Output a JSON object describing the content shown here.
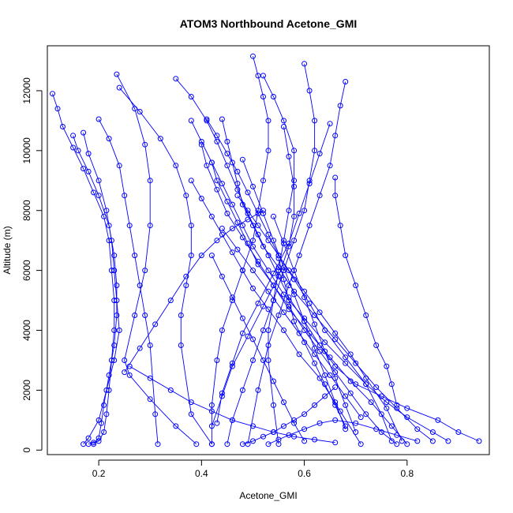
{
  "chart_data": {
    "type": "scatter",
    "title": "ATOM3 Northbound Acetone_GMI",
    "xlabel": "Acetone_GMI",
    "ylabel": "Altitude (m)",
    "xlim": [
      0.1,
      0.96
    ],
    "ylim": [
      -150,
      13500
    ],
    "x_ticks": [
      0.2,
      0.4,
      0.6,
      0.8
    ],
    "y_ticks": [
      0,
      2000,
      4000,
      6000,
      8000,
      10000,
      12000
    ],
    "x_tick_labels": [
      "0.2",
      "0.4",
      "0.6",
      "0.8"
    ],
    "y_tick_labels": [
      "0",
      "2000",
      "4000",
      "6000",
      "8000",
      "10000",
      "12000"
    ],
    "grid": false,
    "legend": "none",
    "color": "#0000ff",
    "marker": "open-circle",
    "line_style": "solid-line-with-markers",
    "series": [
      {
        "x": [
          0.11,
          0.12,
          0.13,
          0.15,
          0.17,
          0.19,
          0.21,
          0.22,
          0.225,
          0.23,
          0.23,
          0.225,
          0.22,
          0.215,
          0.21,
          0.2,
          0.19,
          0.18
        ],
        "y": [
          11900,
          11400,
          10800,
          10100,
          9400,
          8600,
          7800,
          7000,
          6000,
          5000,
          4000,
          3000,
          2000,
          1200,
          600,
          300,
          250,
          200
        ]
      },
      {
        "x": [
          0.15,
          0.16,
          0.18,
          0.2,
          0.22,
          0.23,
          0.235,
          0.235,
          0.23,
          0.22,
          0.21,
          0.205,
          0.2,
          0.19
        ],
        "y": [
          10500,
          10000,
          9300,
          8500,
          7500,
          6500,
          5500,
          4500,
          3500,
          2500,
          1500,
          900,
          400,
          200
        ]
      },
      {
        "x": [
          0.17,
          0.18,
          0.2,
          0.215,
          0.225,
          0.23,
          0.235,
          0.24,
          0.23,
          0.215,
          0.2,
          0.18,
          0.17
        ],
        "y": [
          10600,
          9900,
          9000,
          8000,
          7000,
          6000,
          5000,
          4000,
          3000,
          2000,
          1000,
          400,
          200
        ]
      },
      {
        "x": [
          0.2,
          0.22,
          0.24,
          0.25,
          0.26,
          0.27,
          0.28,
          0.29,
          0.3,
          0.31,
          0.315
        ],
        "y": [
          11050,
          10400,
          9500,
          8500,
          7500,
          6500,
          5500,
          4500,
          3500,
          1200,
          200
        ]
      },
      {
        "x": [
          0.235,
          0.27,
          0.29,
          0.3,
          0.3,
          0.29,
          0.27,
          0.25,
          0.26,
          0.3,
          0.35,
          0.39
        ],
        "y": [
          12550,
          11400,
          10200,
          9000,
          7500,
          6000,
          4500,
          3000,
          2500,
          1700,
          800,
          200
        ]
      },
      {
        "x": [
          0.24,
          0.28,
          0.32,
          0.35,
          0.37,
          0.38,
          0.38,
          0.37,
          0.36,
          0.36,
          0.38,
          0.42
        ],
        "y": [
          12100,
          11300,
          10400,
          9500,
          8500,
          7500,
          6500,
          5500,
          4500,
          3500,
          1200,
          200
        ]
      },
      {
        "x": [
          0.35,
          0.38,
          0.41,
          0.43,
          0.45,
          0.47,
          0.49,
          0.51,
          0.53,
          0.55,
          0.57,
          0.6,
          0.63,
          0.66,
          0.7,
          0.75,
          0.8,
          0.86,
          0.9,
          0.94
        ],
        "y": [
          12400,
          11800,
          11000,
          10300,
          9500,
          8700,
          7900,
          7200,
          6500,
          5800,
          5100,
          4300,
          3500,
          2800,
          2200,
          1800,
          1400,
          1000,
          600,
          300
        ]
      },
      {
        "x": [
          0.38,
          0.4,
          0.42,
          0.44,
          0.46,
          0.48,
          0.5,
          0.53,
          0.56,
          0.6,
          0.64,
          0.68,
          0.72,
          0.76,
          0.8,
          0.85,
          0.88
        ],
        "y": [
          11000,
          10300,
          9600,
          8900,
          8200,
          7500,
          6800,
          6000,
          5200,
          4400,
          3600,
          2900,
          2200,
          1600,
          1100,
          600,
          300
        ]
      },
      {
        "x": [
          0.4,
          0.41,
          0.43,
          0.45,
          0.48,
          0.51,
          0.54,
          0.57,
          0.61,
          0.65,
          0.69,
          0.73,
          0.77,
          0.8
        ],
        "y": [
          10200,
          9500,
          8700,
          7900,
          7100,
          6300,
          5500,
          4700,
          3900,
          3100,
          2300,
          1600,
          800,
          200
        ]
      },
      {
        "x": [
          0.38,
          0.4,
          0.42,
          0.44,
          0.46,
          0.48,
          0.5,
          0.53,
          0.56,
          0.59,
          0.63,
          0.67,
          0.71
        ],
        "y": [
          9000,
          8400,
          7800,
          7200,
          6600,
          6000,
          5400,
          4700,
          4000,
          3200,
          2400,
          1300,
          200
        ]
      },
      {
        "x": [
          0.41,
          0.43,
          0.45,
          0.47,
          0.49,
          0.51,
          0.53,
          0.55,
          0.58,
          0.61,
          0.64,
          0.68,
          0.72,
          0.75,
          0.77
        ],
        "y": [
          11050,
          10500,
          9900,
          9300,
          8600,
          7900,
          7200,
          6500,
          5700,
          4900,
          4000,
          3100,
          2200,
          1200,
          300
        ]
      },
      {
        "x": [
          0.44,
          0.45,
          0.46,
          0.47,
          0.48,
          0.5,
          0.52,
          0.55,
          0.58,
          0.62,
          0.66,
          0.7,
          0.74,
          0.78,
          0.82,
          0.85
        ],
        "y": [
          11050,
          10300,
          9600,
          8900,
          8200,
          7500,
          6800,
          6100,
          5300,
          4500,
          3700,
          2900,
          2100,
          1400,
          700,
          300
        ]
      },
      {
        "x": [
          0.5,
          0.51,
          0.52,
          0.53,
          0.53,
          0.52,
          0.51,
          0.5,
          0.48,
          0.46,
          0.44,
          0.43,
          0.42,
          0.42
        ],
        "y": [
          13150,
          12500,
          11800,
          11000,
          10000,
          9000,
          8000,
          7000,
          6000,
          5000,
          4000,
          3000,
          1500,
          200
        ]
      },
      {
        "x": [
          0.52,
          0.54,
          0.56,
          0.58,
          0.58,
          0.57,
          0.56,
          0.55,
          0.54,
          0.53,
          0.53,
          0.54,
          0.55
        ],
        "y": [
          12500,
          11800,
          11000,
          10000,
          9000,
          8000,
          7000,
          6000,
          5000,
          4000,
          3000,
          1500,
          200
        ]
      },
      {
        "x": [
          0.6,
          0.61,
          0.62,
          0.62,
          0.61,
          0.6,
          0.58,
          0.56,
          0.54,
          0.52,
          0.5,
          0.48,
          0.46,
          0.45
        ],
        "y": [
          12900,
          12000,
          11000,
          10000,
          9000,
          8000,
          7000,
          6000,
          5000,
          4000,
          3000,
          2000,
          1000,
          200
        ]
      },
      {
        "x": [
          0.68,
          0.67,
          0.66,
          0.65,
          0.63,
          0.61,
          0.59,
          0.57,
          0.55,
          0.53,
          0.51,
          0.49
        ],
        "y": [
          12300,
          11500,
          10500,
          9500,
          8500,
          7500,
          6500,
          5500,
          4500,
          3500,
          2000,
          200
        ]
      },
      {
        "x": [
          0.66,
          0.66,
          0.67,
          0.68,
          0.7,
          0.72,
          0.74,
          0.76,
          0.77,
          0.78
        ],
        "y": [
          9100,
          8500,
          7500,
          6500,
          5500,
          4500,
          3500,
          2800,
          2200,
          1500
        ]
      },
      {
        "x": [
          0.47,
          0.49,
          0.51,
          0.53,
          0.55,
          0.57,
          0.6,
          0.63,
          0.66,
          0.69,
          0.72,
          0.76,
          0.79
        ],
        "y": [
          8500,
          8000,
          7500,
          7000,
          6500,
          6000,
          5300,
          4600,
          3900,
          3200,
          2400,
          1400,
          300
        ]
      },
      {
        "x": [
          0.42,
          0.43,
          0.45,
          0.47,
          0.49,
          0.51,
          0.54,
          0.57,
          0.6,
          0.63,
          0.66,
          0.69,
          0.72,
          0.75,
          0.78
        ],
        "y": [
          9600,
          9000,
          8300,
          7600,
          6900,
          6200,
          5500,
          4800,
          4000,
          3300,
          2600,
          1900,
          1200,
          600,
          200
        ]
      },
      {
        "x": [
          0.56,
          0.57,
          0.58,
          0.58,
          0.57,
          0.55,
          0.52,
          0.49,
          0.46,
          0.44,
          0.42
        ],
        "y": [
          10800,
          9800,
          8800,
          7800,
          6800,
          5800,
          4800,
          3800,
          2800,
          1800,
          800
        ]
      },
      {
        "x": [
          0.65,
          0.63,
          0.61,
          0.59,
          0.57,
          0.54,
          0.51,
          0.48,
          0.46,
          0.44,
          0.43
        ],
        "y": [
          10900,
          9900,
          8900,
          7900,
          6900,
          5900,
          4900,
          3900,
          2900,
          1900,
          900
        ]
      },
      {
        "x": [
          0.54,
          0.56,
          0.58,
          0.6,
          0.62,
          0.64,
          0.66,
          0.68,
          0.7
        ],
        "y": [
          7800,
          6900,
          6000,
          5100,
          4200,
          3300,
          2400,
          1500,
          600
        ]
      },
      {
        "x": [
          0.48,
          0.5,
          0.52,
          0.54,
          0.56,
          0.58,
          0.6,
          0.62,
          0.64,
          0.66,
          0.68
        ],
        "y": [
          9700,
          8800,
          7900,
          7000,
          6100,
          5200,
          4300,
          3400,
          2500,
          1600,
          700
        ]
      },
      {
        "x": [
          0.44,
          0.47,
          0.5,
          0.53,
          0.56,
          0.59,
          0.62,
          0.65,
          0.68,
          0.71
        ],
        "y": [
          7400,
          6700,
          6000,
          5300,
          4600,
          3900,
          3200,
          2500,
          1800,
          1100
        ]
      },
      {
        "x": [
          0.42,
          0.44,
          0.46,
          0.48,
          0.5,
          0.52,
          0.54,
          0.56,
          0.58,
          0.6
        ],
        "y": [
          6500,
          5800,
          5100,
          4400,
          3700,
          3000,
          2300,
          1600,
          900,
          300
        ]
      },
      {
        "x": [
          0.55,
          0.56,
          0.57,
          0.58,
          0.6,
          0.62,
          0.64,
          0.66,
          0.68
        ],
        "y": [
          6400,
          5700,
          5000,
          4300,
          3600,
          2900,
          2200,
          1500,
          800
        ]
      },
      {
        "x": [
          0.25,
          0.28,
          0.31,
          0.34,
          0.37,
          0.4,
          0.43,
          0.46,
          0.49,
          0.52
        ],
        "y": [
          2600,
          3400,
          4200,
          5000,
          5800,
          6500,
          7000,
          7400,
          7700,
          8000
        ]
      },
      {
        "x": [
          0.26,
          0.3,
          0.34,
          0.38,
          0.42,
          0.46,
          0.5,
          0.54,
          0.58,
          0.62,
          0.66
        ],
        "y": [
          2800,
          2400,
          2000,
          1600,
          1300,
          1000,
          800,
          600,
          450,
          350,
          250
        ]
      },
      {
        "x": [
          0.48,
          0.5,
          0.52,
          0.54,
          0.56,
          0.58,
          0.6,
          0.62,
          0.64,
          0.66
        ],
        "y": [
          200,
          300,
          450,
          600,
          800,
          1000,
          1200,
          1500,
          1800,
          2100
        ]
      },
      {
        "x": [
          0.53,
          0.55,
          0.57,
          0.6,
          0.63,
          0.66,
          0.7,
          0.74,
          0.78,
          0.82
        ],
        "y": [
          200,
          350,
          500,
          700,
          900,
          1000,
          900,
          700,
          500,
          300
        ]
      }
    ]
  }
}
